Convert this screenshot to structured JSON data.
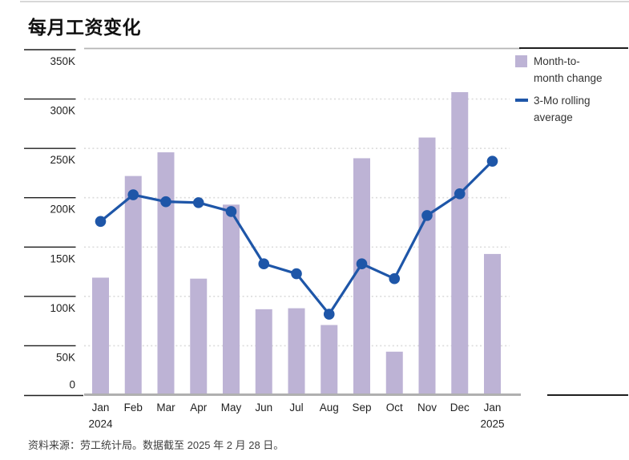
{
  "page": {
    "title": "每月工资变化",
    "source_note": "资料来源：劳工统计局。数据截至 2025 年 2 月 28 日。"
  },
  "legend": {
    "items": [
      {
        "type": "swatch",
        "color": "#bdb3d5",
        "lines": [
          "Month-to-",
          "month change"
        ]
      },
      {
        "type": "line",
        "color": "#1e56a8",
        "lines": [
          "3-Mo rolling",
          "average"
        ]
      }
    ]
  },
  "chart_data": {
    "type": "combo",
    "title": "每月工资变化",
    "categories": [
      {
        "label": "Jan",
        "year": "2024"
      },
      {
        "label": "Feb"
      },
      {
        "label": "Mar"
      },
      {
        "label": "Apr"
      },
      {
        "label": "May"
      },
      {
        "label": "Jun"
      },
      {
        "label": "Jul"
      },
      {
        "label": "Aug"
      },
      {
        "label": "Sep"
      },
      {
        "label": "Oct"
      },
      {
        "label": "Nov"
      },
      {
        "label": "Dec"
      },
      {
        "label": "Jan",
        "year": "2025"
      }
    ],
    "series": [
      {
        "name": "Month-to-month change",
        "type": "bar",
        "color": "#bdb3d5",
        "values_k": [
          119,
          222,
          246,
          118,
          193,
          87,
          88,
          71,
          240,
          44,
          261,
          307,
          143
        ]
      },
      {
        "name": "3-Mo rolling average",
        "type": "line",
        "color": "#1e56a8",
        "values_k": [
          176,
          203,
          196,
          195,
          186,
          133,
          123,
          82,
          133,
          118,
          182,
          204,
          237
        ]
      }
    ],
    "yticks": [
      {
        "value_k": 350,
        "label": "350K"
      },
      {
        "value_k": 300,
        "label": "300K"
      },
      {
        "value_k": 250,
        "label": "250K"
      },
      {
        "value_k": 200,
        "label": "200K"
      },
      {
        "value_k": 150,
        "label": "150K"
      },
      {
        "value_k": 100,
        "label": "100K"
      },
      {
        "value_k": 50,
        "label": "50K"
      },
      {
        "value_k": 0,
        "label": "0"
      }
    ],
    "ylim_k": [
      0,
      350
    ],
    "grid": "dotted-horizontal",
    "legend_position": "top-right",
    "colors": {
      "grid_dotted": "#dcdcdc",
      "grid_top_solid": "#b5b5b5",
      "baseline": "#b0b0b0",
      "axis_ticks": "#1f1f1f"
    }
  }
}
